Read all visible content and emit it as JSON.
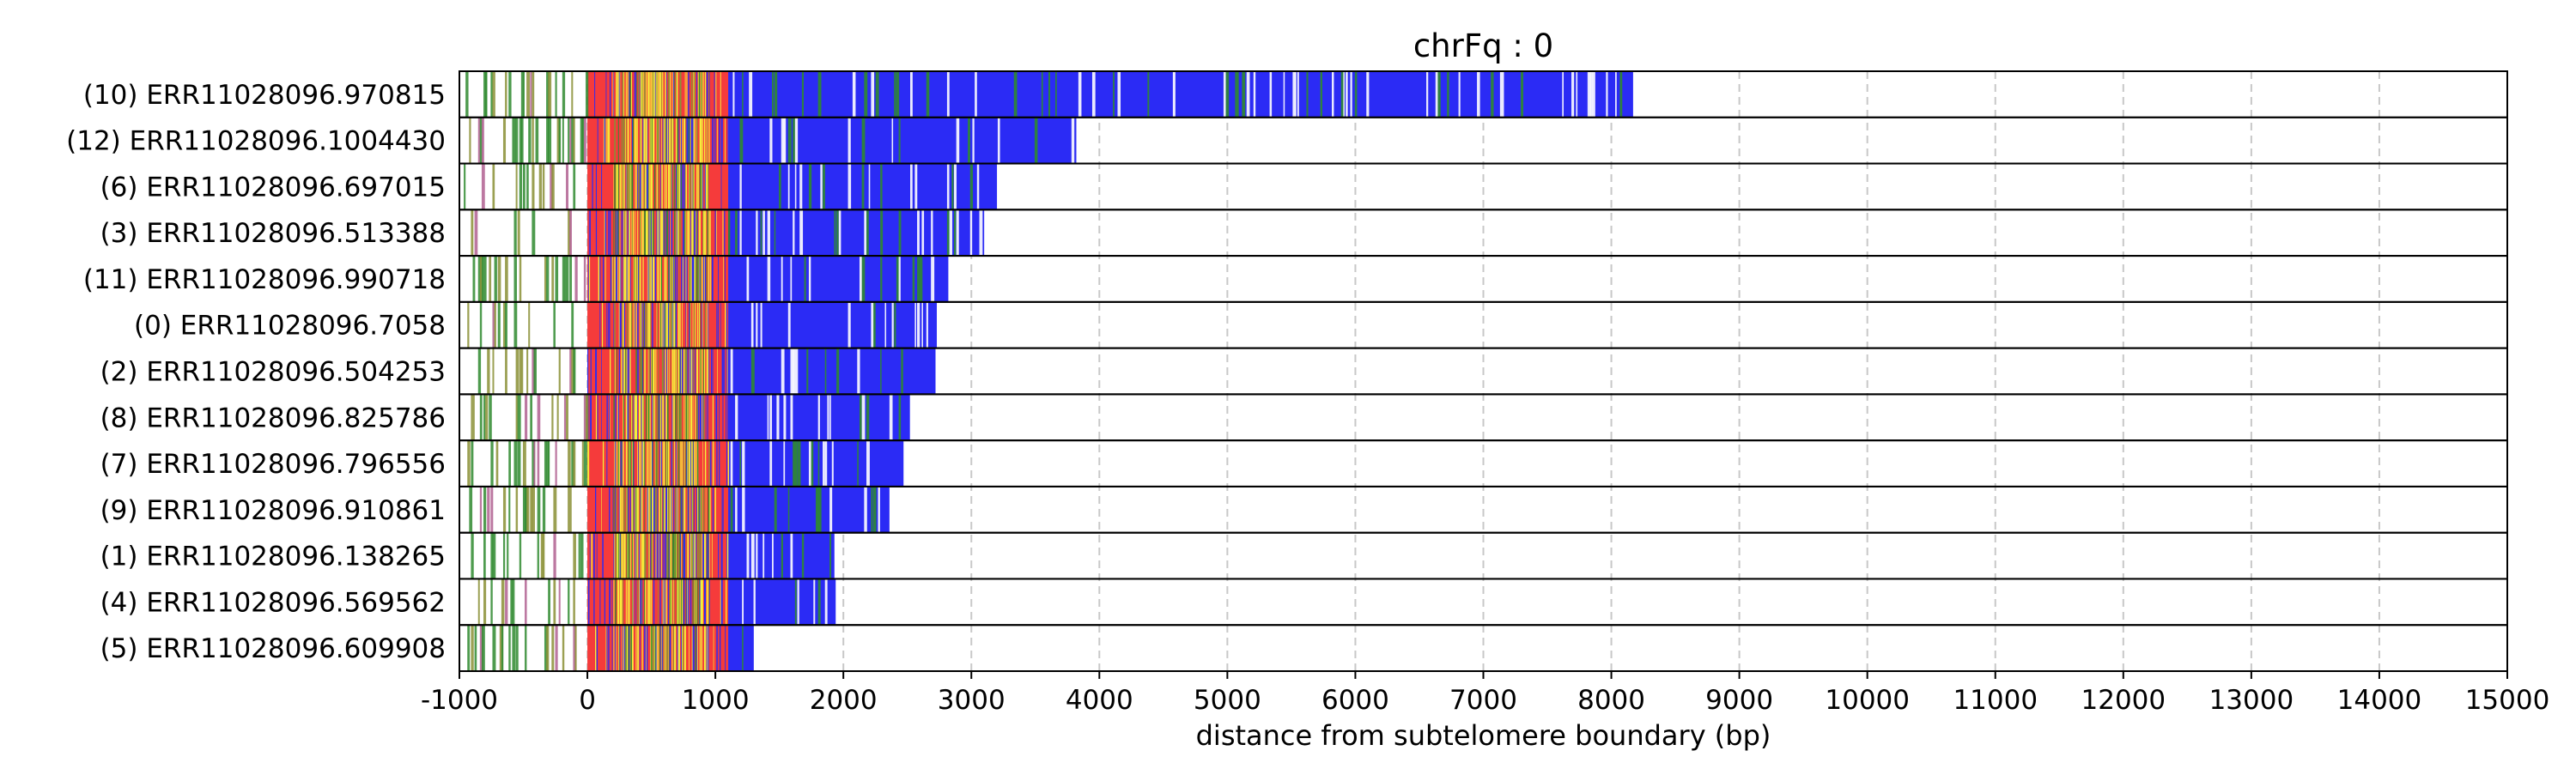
{
  "chart_data": {
    "type": "bar",
    "title": "chrFq : 0",
    "xlabel": "distance from subtelomere boundary (bp)",
    "ylabel": "",
    "xlim": [
      -1000,
      15000
    ],
    "xticks": [
      -1000,
      0,
      1000,
      2000,
      3000,
      4000,
      5000,
      6000,
      7000,
      8000,
      9000,
      10000,
      11000,
      12000,
      13000,
      14000,
      15000
    ],
    "xtick_labels": [
      "-1000",
      "0",
      "1000",
      "2000",
      "3000",
      "4000",
      "5000",
      "6000",
      "7000",
      "8000",
      "9000",
      "10000",
      "11000",
      "12000",
      "13000",
      "14000",
      "15000"
    ],
    "grid": "vertical dashed",
    "colors": {
      "blue": "#2b2bf5",
      "red": "#f53b3b",
      "yellow": "#f5ee3a",
      "green": "#2f8a2f",
      "olive": "#8a8f35",
      "grid": "#c8c8c8",
      "border": "#000000"
    },
    "reads": [
      {
        "label": "(10) ERR11028096.970815",
        "start": -1000,
        "end": 8170
      },
      {
        "label": "(12) ERR11028096.1004430",
        "start": -1000,
        "end": 3820
      },
      {
        "label": "(6) ERR11028096.697015",
        "start": -1000,
        "end": 3200
      },
      {
        "label": "(3) ERR11028096.513388",
        "start": -1000,
        "end": 3100
      },
      {
        "label": "(11) ERR11028096.990718",
        "start": -1000,
        "end": 2820
      },
      {
        "label": "(0) ERR11028096.7058",
        "start": -1000,
        "end": 2730
      },
      {
        "label": "(2) ERR11028096.504253",
        "start": -1000,
        "end": 2720
      },
      {
        "label": "(8) ERR11028096.825786",
        "start": -1000,
        "end": 2520
      },
      {
        "label": "(7) ERR11028096.796556",
        "start": -1000,
        "end": 2470
      },
      {
        "label": "(9) ERR11028096.910861",
        "start": -1000,
        "end": 2360
      },
      {
        "label": "(1) ERR11028096.138265",
        "start": -1000,
        "end": 1930
      },
      {
        "label": "(4) ERR11028096.569562",
        "start": -1000,
        "end": 1940
      },
      {
        "label": "(5) ERR11028096.609908",
        "start": -1000,
        "end": 1300
      }
    ]
  }
}
